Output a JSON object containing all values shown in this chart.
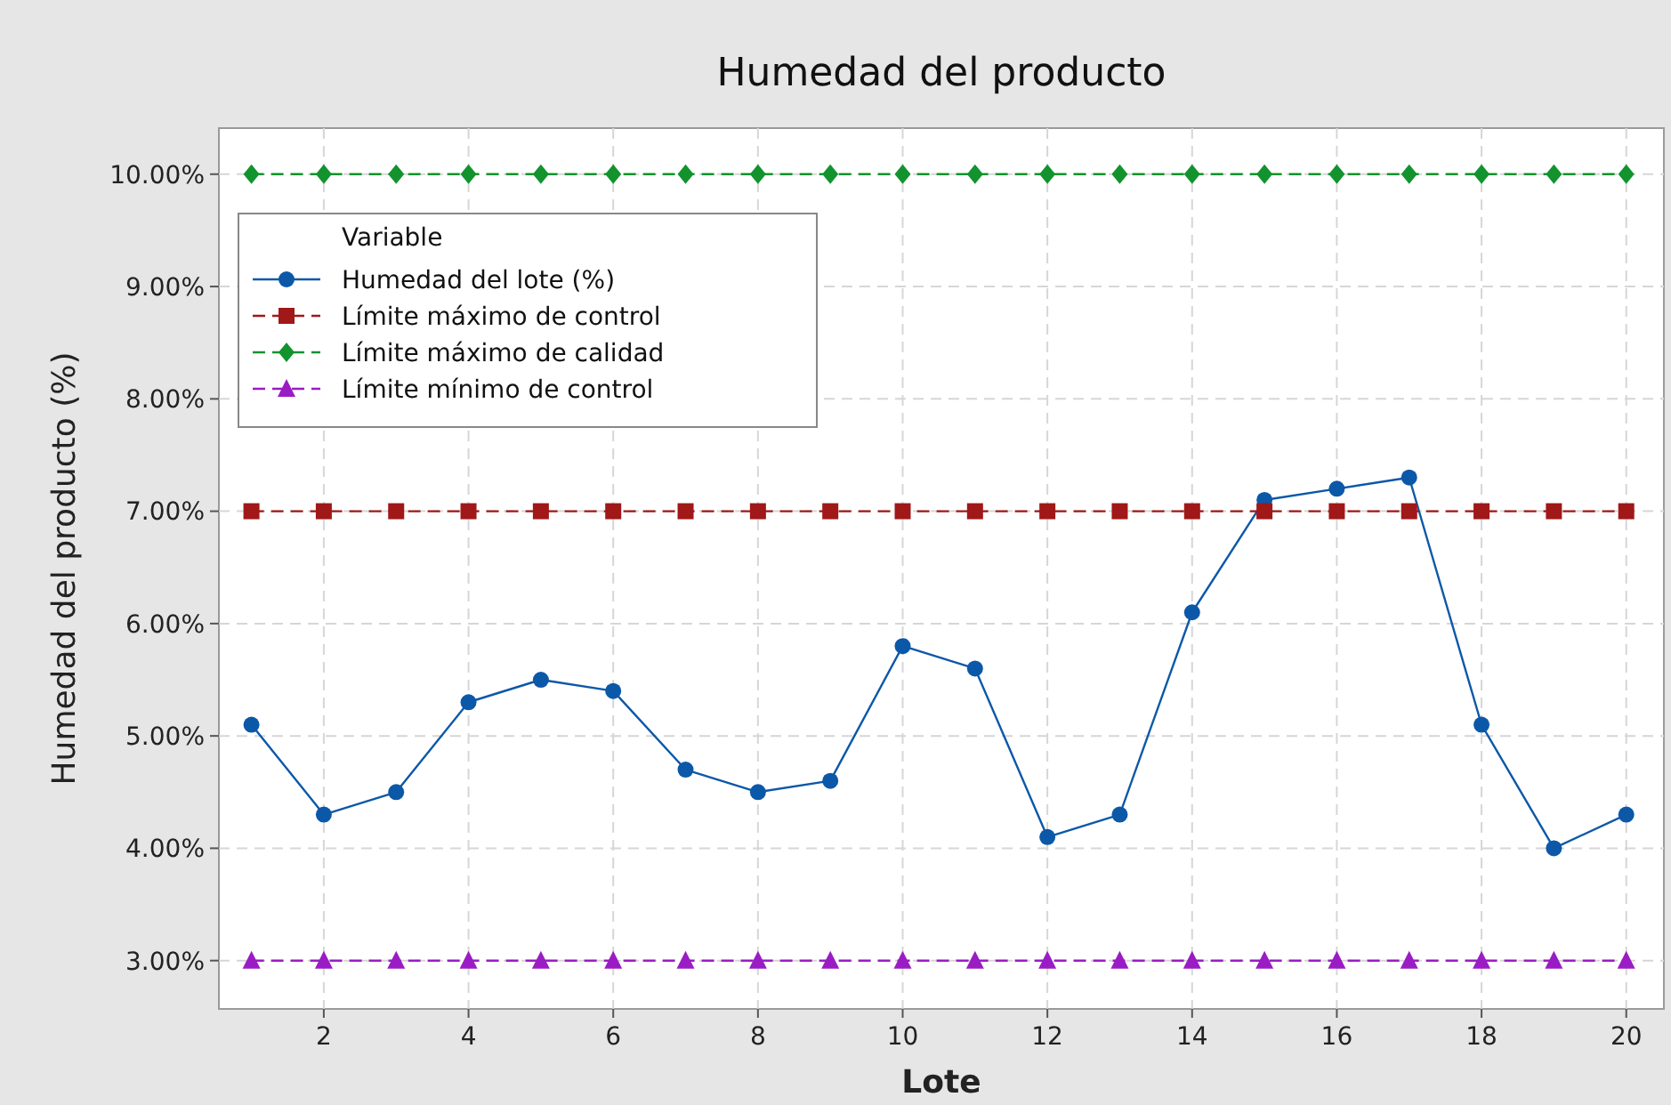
{
  "chart_data": {
    "type": "line",
    "title": "Humedad del producto",
    "xlabel": "Lote",
    "ylabel": "Humedad del producto (%)",
    "legend_title": "Variable",
    "legend": "top left",
    "grid": true,
    "x": [
      1,
      2,
      3,
      4,
      5,
      6,
      7,
      8,
      9,
      10,
      11,
      12,
      13,
      14,
      15,
      16,
      17,
      18,
      19,
      20
    ],
    "xlim": [
      0.55,
      20.52
    ],
    "xticks": [
      2,
      4,
      6,
      8,
      10,
      12,
      14,
      16,
      18,
      20
    ],
    "ylim": [
      2.57,
      10.41
    ],
    "yticks": [
      {
        "value": 3,
        "label": "3.00%"
      },
      {
        "value": 4,
        "label": "4.00%"
      },
      {
        "value": 5,
        "label": "5.00%"
      },
      {
        "value": 6,
        "label": "6.00%"
      },
      {
        "value": 7,
        "label": "7.00%"
      },
      {
        "value": 8,
        "label": "8.00%"
      },
      {
        "value": 9,
        "label": "9.00%"
      },
      {
        "value": 10,
        "label": "10.00%"
      }
    ],
    "series": [
      {
        "name": "Humedad del lote (%)",
        "color": "#0c58a8",
        "marker": "circle",
        "line_style": "solid",
        "values": [
          5.1,
          4.3,
          4.5,
          5.3,
          5.5,
          5.4,
          4.7,
          4.5,
          4.6,
          5.8,
          5.6,
          4.1,
          4.3,
          6.1,
          7.1,
          7.2,
          7.3,
          5.1,
          4.0,
          4.3
        ]
      },
      {
        "name": "Límite máximo de control",
        "color": "#a01818",
        "marker": "square",
        "line_style": "dashed",
        "values": [
          7,
          7,
          7,
          7,
          7,
          7,
          7,
          7,
          7,
          7,
          7,
          7,
          7,
          7,
          7,
          7,
          7,
          7,
          7,
          7
        ]
      },
      {
        "name": "Límite máximo de calidad",
        "color": "#12932e",
        "marker": "diamond",
        "line_style": "dashed",
        "values": [
          10,
          10,
          10,
          10,
          10,
          10,
          10,
          10,
          10,
          10,
          10,
          10,
          10,
          10,
          10,
          10,
          10,
          10,
          10,
          10
        ]
      },
      {
        "name": "Límite mínimo de control",
        "color": "#9a1cc4",
        "marker": "triangle",
        "line_style": "dashed",
        "values": [
          3,
          3,
          3,
          3,
          3,
          3,
          3,
          3,
          3,
          3,
          3,
          3,
          3,
          3,
          3,
          3,
          3,
          3,
          3,
          3
        ]
      }
    ]
  }
}
